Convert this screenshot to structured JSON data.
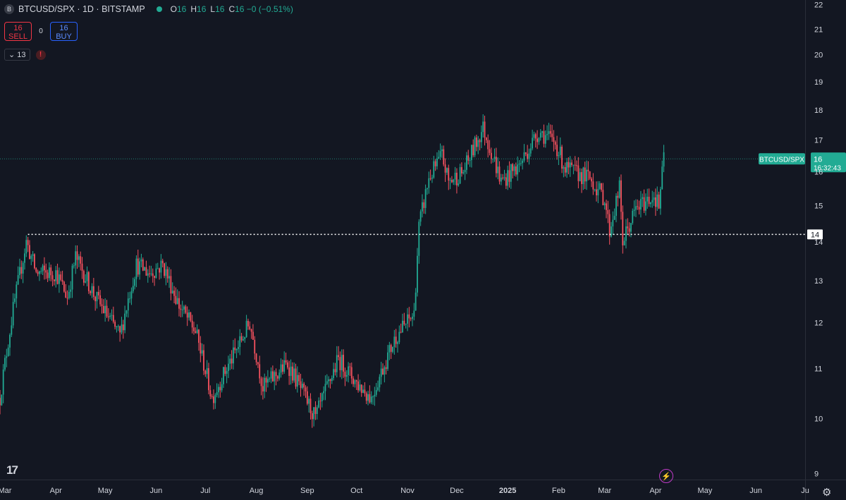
{
  "header": {
    "symbol_icon": "B",
    "title": "BTCUSD/SPX · 1D · BITSTAMP",
    "ohlc": [
      {
        "k": "O",
        "v": "16"
      },
      {
        "k": "H",
        "v": "16"
      },
      {
        "k": "L",
        "v": "16"
      },
      {
        "k": "C",
        "v": "16 −0 (−0.51%)"
      }
    ]
  },
  "trade": {
    "sell_price": "16",
    "sell_label": "SELL",
    "spread": "0",
    "buy_price": "16",
    "buy_label": "BUY"
  },
  "indicators": {
    "count": "13",
    "warning": "!"
  },
  "footer": {
    "logo": "17",
    "flash_icon": "⚡",
    "settings_icon": "⚙"
  },
  "colors": {
    "bg": "#131722",
    "up": "#22ab94",
    "down": "#f7525f",
    "grid": "#2a2e39",
    "text": "#d1d4dc"
  },
  "chart_data": {
    "type": "candlestick",
    "scale": "log",
    "ylim": [
      8.9,
      22.2
    ],
    "y_ticks": [
      "9",
      "10",
      "11",
      "12",
      "13",
      "14",
      "15",
      "16",
      "17",
      "18",
      "19",
      "20",
      "21",
      "22"
    ],
    "x_ticks": [
      "Mar",
      "Apr",
      "May",
      "Jun",
      "Jul",
      "Aug",
      "Sep",
      "Oct",
      "Nov",
      "Dec",
      "2025",
      "Feb",
      "Mar",
      "Apr",
      "May",
      "Jun",
      "Ju"
    ],
    "x_start": "2024-02-27",
    "x_end": "2025-07-01",
    "horizontal_line": {
      "value": 14.2,
      "label": "14",
      "start_date": "2024-03-15"
    },
    "last_price": {
      "value": 16.4,
      "symbol": "BTCUSD/SPX",
      "label": "16",
      "countdown": "16:32:43"
    },
    "anchors": [
      [
        "2024-02-27",
        10.4
      ],
      [
        "2024-03-06",
        12.3
      ],
      [
        "2024-03-14",
        14.0
      ],
      [
        "2024-03-20",
        13.2
      ],
      [
        "2024-04-01",
        13.2
      ],
      [
        "2024-04-08",
        12.6
      ],
      [
        "2024-04-13",
        13.6
      ],
      [
        "2024-04-25",
        12.6
      ],
      [
        "2024-05-10",
        11.7
      ],
      [
        "2024-05-20",
        13.4
      ],
      [
        "2024-05-28",
        13.2
      ],
      [
        "2024-06-05",
        13.4
      ],
      [
        "2024-06-15",
        12.4
      ],
      [
        "2024-06-25",
        11.8
      ],
      [
        "2024-07-05",
        10.4
      ],
      [
        "2024-07-20",
        11.4
      ],
      [
        "2024-07-28",
        12.0
      ],
      [
        "2024-08-05",
        10.6
      ],
      [
        "2024-08-20",
        11.1
      ],
      [
        "2024-09-06",
        10.0
      ],
      [
        "2024-09-20",
        11.2
      ],
      [
        "2024-10-01",
        10.7
      ],
      [
        "2024-10-10",
        10.4
      ],
      [
        "2024-10-25",
        11.7
      ],
      [
        "2024-11-05",
        12.2
      ],
      [
        "2024-11-08",
        14.4
      ],
      [
        "2024-11-14",
        15.8
      ],
      [
        "2024-11-22",
        16.5
      ],
      [
        "2024-11-26",
        15.7
      ],
      [
        "2024-12-05",
        16.0
      ],
      [
        "2024-12-17",
        17.4
      ],
      [
        "2024-12-28",
        15.7
      ],
      [
        "2025-01-08",
        16.2
      ],
      [
        "2025-01-20",
        17.3
      ],
      [
        "2025-01-30",
        16.9
      ],
      [
        "2025-02-05",
        16.1
      ],
      [
        "2025-02-20",
        15.8
      ],
      [
        "2025-03-01",
        15.2
      ],
      [
        "2025-03-04",
        14.3
      ],
      [
        "2025-03-10",
        15.5
      ],
      [
        "2025-03-12",
        14.0
      ],
      [
        "2025-03-20",
        14.9
      ],
      [
        "2025-03-31",
        15.3
      ],
      [
        "2025-04-03",
        15.0
      ],
      [
        "2025-04-06",
        16.4
      ]
    ]
  }
}
